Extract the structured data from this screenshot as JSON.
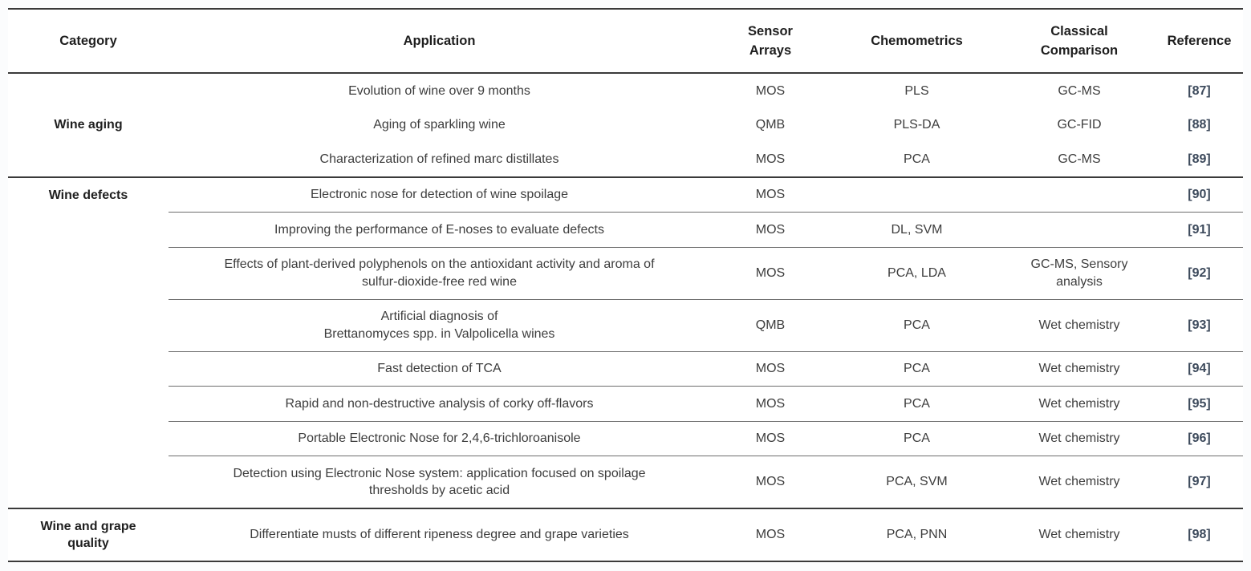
{
  "table": {
    "headers": [
      {
        "key": "category",
        "label": "Category"
      },
      {
        "key": "application",
        "label": "Application"
      },
      {
        "key": "sensor_arrays",
        "label": "Sensor\nArrays"
      },
      {
        "key": "chemometrics",
        "label": "Chemometrics"
      },
      {
        "key": "classical_comparison",
        "label": "Classical\nComparison"
      },
      {
        "key": "reference",
        "label": "Reference"
      }
    ],
    "groups": [
      {
        "category": "Wine aging",
        "category_valign": "middle",
        "row_separators": false,
        "rows": [
          {
            "application": "Evolution of wine over 9 months",
            "sensor_arrays": "MOS",
            "chemometrics": "PLS",
            "classical_comparison": "GC-MS",
            "reference": "[87]"
          },
          {
            "application": "Aging of sparkling wine",
            "sensor_arrays": "QMB",
            "chemometrics": "PLS-DA",
            "classical_comparison": "GC-FID",
            "reference": "[88]"
          },
          {
            "application": "Characterization of refined marc distillates",
            "sensor_arrays": "MOS",
            "chemometrics": "PCA",
            "classical_comparison": "GC-MS",
            "reference": "[89]"
          }
        ]
      },
      {
        "category": "Wine defects",
        "category_valign": "top",
        "row_separators": true,
        "rows": [
          {
            "application": "Electronic nose for detection of wine spoilage",
            "sensor_arrays": "MOS",
            "chemometrics": "",
            "classical_comparison": "",
            "reference": "[90]"
          },
          {
            "application": "Improving the performance of E-noses to evaluate defects",
            "sensor_arrays": "MOS",
            "chemometrics": "DL, SVM",
            "classical_comparison": "",
            "reference": "[91]"
          },
          {
            "application": "Effects of plant-derived polyphenols on the antioxidant activity and aroma of\nsulfur-dioxide-free red wine",
            "sensor_arrays": "MOS",
            "chemometrics": "PCA, LDA",
            "classical_comparison": "GC-MS, Sensory\nanalysis",
            "reference": "[92]"
          },
          {
            "application": "Artificial diagnosis of\nBrettanomyces spp. in Valpolicella wines",
            "sensor_arrays": "QMB",
            "chemometrics": "PCA",
            "classical_comparison": "Wet chemistry",
            "reference": "[93]"
          },
          {
            "application": "Fast detection of TCA",
            "sensor_arrays": "MOS",
            "chemometrics": "PCA",
            "classical_comparison": "Wet chemistry",
            "reference": "[94]"
          },
          {
            "application": "Rapid and non-destructive analysis of corky off-flavors",
            "sensor_arrays": "MOS",
            "chemometrics": "PCA",
            "classical_comparison": "Wet chemistry",
            "reference": "[95]"
          },
          {
            "application": "Portable Electronic Nose for 2,4,6-trichloroanisole",
            "sensor_arrays": "MOS",
            "chemometrics": "PCA",
            "classical_comparison": "Wet chemistry",
            "reference": "[96]"
          },
          {
            "application": "Detection using Electronic Nose system: application focused on spoilage\nthresholds by acetic acid",
            "sensor_arrays": "MOS",
            "chemometrics": "PCA, SVM",
            "classical_comparison": "Wet chemistry",
            "reference": "[97]"
          }
        ]
      },
      {
        "category": "Wine and grape\nquality",
        "category_valign": "middle",
        "row_separators": true,
        "rows": [
          {
            "application": "Differentiate musts of different ripeness degree and grape varieties",
            "sensor_arrays": "MOS",
            "chemometrics": "PCA, PNN",
            "classical_comparison": "Wet chemistry",
            "reference": "[98]"
          }
        ]
      }
    ],
    "colors": {
      "border_heavy": "#3a3a3a",
      "border_light": "#6d6d6d",
      "text": "#3d3d3d",
      "header_text": "#1e1e1e",
      "reference_link": "#3d4a5c",
      "table_background": "#ffffff"
    }
  }
}
